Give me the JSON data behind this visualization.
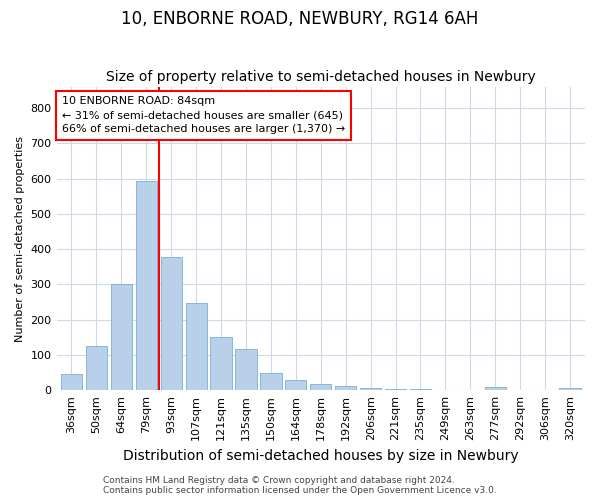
{
  "title": "10, ENBORNE ROAD, NEWBURY, RG14 6AH",
  "subtitle": "Size of property relative to semi-detached houses in Newbury",
  "xlabel": "Distribution of semi-detached houses by size in Newbury",
  "ylabel": "Number of semi-detached properties",
  "categories": [
    "36sqm",
    "50sqm",
    "64sqm",
    "79sqm",
    "93sqm",
    "107sqm",
    "121sqm",
    "135sqm",
    "150sqm",
    "164sqm",
    "178sqm",
    "192sqm",
    "206sqm",
    "221sqm",
    "235sqm",
    "249sqm",
    "263sqm",
    "277sqm",
    "292sqm",
    "306sqm",
    "320sqm"
  ],
  "values": [
    47,
    125,
    302,
    593,
    378,
    248,
    150,
    117,
    50,
    30,
    18,
    12,
    6,
    3,
    2,
    1,
    1,
    8,
    1,
    1,
    5
  ],
  "bar_color": "#b8d0ea",
  "bar_edge_color": "#7aafd4",
  "red_line_x": 3.5,
  "annotation_line1": "10 ENBORNE ROAD: 84sqm",
  "annotation_line2": "← 31% of semi-detached houses are smaller (645)",
  "annotation_line3": "66% of semi-detached houses are larger (1,370) →",
  "ylim": [
    0,
    860
  ],
  "yticks": [
    0,
    100,
    200,
    300,
    400,
    500,
    600,
    700,
    800
  ],
  "footer_line1": "Contains HM Land Registry data © Crown copyright and database right 2024.",
  "footer_line2": "Contains public sector information licensed under the Open Government Licence v3.0.",
  "bg_color": "#ffffff",
  "grid_color": "#cdd8e8",
  "title_fontsize": 12,
  "subtitle_fontsize": 10,
  "xlabel_fontsize": 10,
  "ylabel_fontsize": 8,
  "tick_fontsize": 8,
  "annotation_fontsize": 8,
  "footer_fontsize": 6.5
}
